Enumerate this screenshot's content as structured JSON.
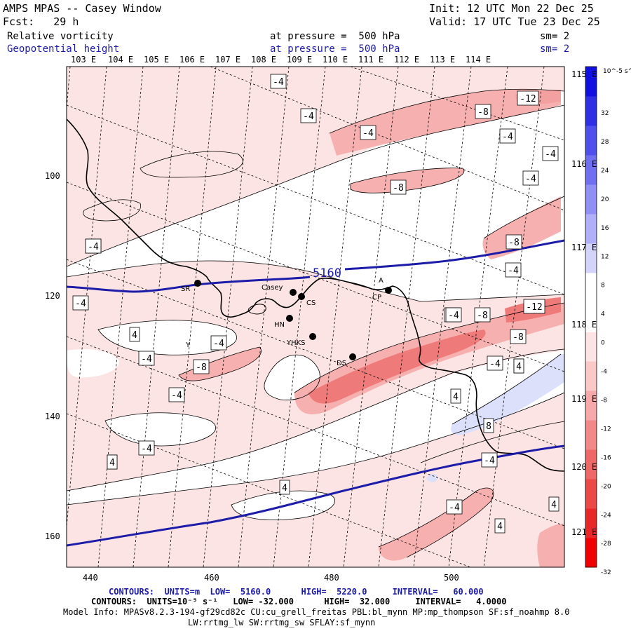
{
  "header": {
    "title": "AMPS MPAS -- Casey Window",
    "init": "Init: 12 UTC Mon 22 Dec 25",
    "fcst": "Fcst:   29 h",
    "valid": "Valid: 17 UTC Tue 23 Dec 25",
    "field1_name": "Relative vorticity",
    "field1_level": "at pressure =  500 hPa",
    "field1_sm": "sm= 2",
    "field2_name": "Geopotential height",
    "field2_level": "at pressure =  500 hPa",
    "field2_sm": "sm= 2"
  },
  "top_lon_labels": [
    "103 E",
    "104 E",
    "105 E",
    "106 E",
    "107 E",
    "108 E",
    "109 E",
    "110 E",
    "111 E",
    "112 E",
    "113 E",
    "114 E"
  ],
  "right_lon_labels": [
    "115 E",
    "116 E",
    "117 E",
    "118 E",
    "119 E",
    "120 E",
    "121 E"
  ],
  "x_axis_labels": [
    "440",
    "460",
    "480",
    "500"
  ],
  "y_axis_labels": [
    "100",
    "120",
    "140",
    "160"
  ],
  "stations": [
    {
      "name": "SR"
    },
    {
      "name": "Casey"
    },
    {
      "name": "CS"
    },
    {
      "name": "HN"
    },
    {
      "name": "YHKS"
    },
    {
      "name": "DS"
    },
    {
      "name": "CP"
    },
    {
      "name": "Y"
    },
    {
      "name": "A"
    }
  ],
  "height_contour_label": "5160",
  "vorticity_labels": [
    "-4",
    "-4",
    "-4",
    "-8",
    "-12",
    "-4",
    "-4",
    "-8",
    "-4",
    "-8",
    "-4",
    "-4",
    "-4",
    "-4",
    "4",
    "-4",
    "-8",
    "-4",
    "-4",
    "4",
    "-4",
    "-4",
    "-8",
    "-12",
    "-8",
    "-4",
    "4",
    "4",
    "8",
    "-4",
    "4",
    "-4",
    "4",
    "4",
    "4",
    "4",
    "-4"
  ],
  "colorbar": {
    "unit": "10^-5 s^-1",
    "labels": [
      "32",
      "28",
      "24",
      "20",
      "16",
      "12",
      "8",
      "4",
      "0",
      "-4",
      "-8",
      "-12",
      "-16",
      "-20",
      "-24",
      "-28",
      "-32"
    ],
    "colors": [
      "#1010e0",
      "#2f2fe6",
      "#4f4fec",
      "#6f6ff0",
      "#9090f4",
      "#b0b0f8",
      "#d4d4fb",
      "#ffffff",
      "#ffffff",
      "#fde4e4",
      "#fbc8c8",
      "#f7a8a8",
      "#f38888",
      "#ef6868",
      "#eb4848",
      "#e82828",
      "#f00000"
    ]
  },
  "footer": {
    "line1": "CONTOURS:  UNITS=m  LOW=  5160.0      HIGH=  5220.0     INTERVAL=   60.000",
    "line2": "CONTOURS:  UNITS=10⁻⁵ s⁻¹   LOW= -32.000      HIGH=  32.000     INTERVAL=   4.0000",
    "line3": "Model Info: MPASv8.2.3-194-gf29cd82c CU:cu_grell_freitas PBL:bl_mynn MP:mp_thompson SF:sf_noahmp 8.0",
    "line4": "LW:rrtmg_lw SW:rrtmg_sw SFLAY:sf_mynn"
  },
  "colors": {
    "height_line": "#1c1ca8",
    "coast": "#000000",
    "pink_light": "#fde4e4",
    "pink_mid": "#f7b0b0",
    "pink_dark": "#ef7a7a",
    "blue_light": "#dde0fb"
  }
}
